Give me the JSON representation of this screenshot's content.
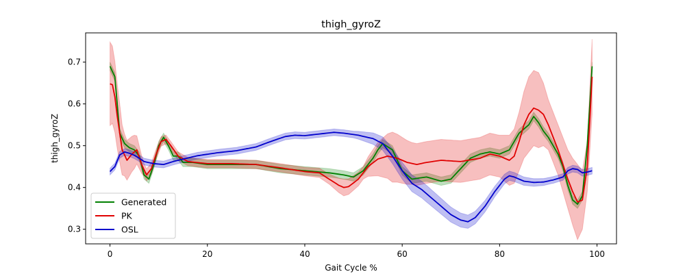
{
  "chart_data": {
    "type": "line",
    "title": "thigh_gyroZ",
    "xlabel": "Gait Cycle %",
    "ylabel": "thigh_gyroZ",
    "xlim": [
      -5,
      104
    ],
    "ylim": [
      0.265,
      0.77
    ],
    "xticks": [
      0,
      20,
      40,
      60,
      80,
      100
    ],
    "yticks": [
      0.3,
      0.4,
      0.5,
      0.6,
      0.7
    ],
    "grid": false,
    "legend_position": "lower-left",
    "series": [
      {
        "name": "Generated",
        "color": "#008000",
        "band": 0.01,
        "knots": [
          [
            0,
            0.69
          ],
          [
            1,
            0.665
          ],
          [
            2,
            0.53
          ],
          [
            3,
            0.505
          ],
          [
            4,
            0.495
          ],
          [
            5,
            0.49
          ],
          [
            6,
            0.475
          ],
          [
            7,
            0.43
          ],
          [
            8,
            0.42
          ],
          [
            9,
            0.455
          ],
          [
            10,
            0.5
          ],
          [
            11,
            0.52
          ],
          [
            12,
            0.5
          ],
          [
            13,
            0.475
          ],
          [
            14,
            0.475
          ],
          [
            15,
            0.46
          ],
          [
            17,
            0.46
          ],
          [
            20,
            0.455
          ],
          [
            25,
            0.455
          ],
          [
            30,
            0.455
          ],
          [
            35,
            0.445
          ],
          [
            40,
            0.44
          ],
          [
            45,
            0.435
          ],
          [
            48,
            0.43
          ],
          [
            50,
            0.425
          ],
          [
            52,
            0.44
          ],
          [
            54,
            0.47
          ],
          [
            55,
            0.49
          ],
          [
            56,
            0.505
          ],
          [
            58,
            0.49
          ],
          [
            60,
            0.44
          ],
          [
            62,
            0.42
          ],
          [
            65,
            0.425
          ],
          [
            68,
            0.415
          ],
          [
            70,
            0.42
          ],
          [
            72,
            0.445
          ],
          [
            74,
            0.47
          ],
          [
            76,
            0.48
          ],
          [
            78,
            0.485
          ],
          [
            80,
            0.48
          ],
          [
            82,
            0.49
          ],
          [
            84,
            0.53
          ],
          [
            86,
            0.55
          ],
          [
            87,
            0.57
          ],
          [
            88,
            0.555
          ],
          [
            89,
            0.535
          ],
          [
            90,
            0.52
          ],
          [
            91,
            0.5
          ],
          [
            92,
            0.48
          ],
          [
            93,
            0.45
          ],
          [
            94,
            0.405
          ],
          [
            95,
            0.37
          ],
          [
            96,
            0.36
          ],
          [
            97,
            0.38
          ],
          [
            98,
            0.5
          ],
          [
            99,
            0.69
          ]
        ]
      },
      {
        "name": "PK",
        "color": "#e00000",
        "band_knots": [
          [
            0,
            0.1
          ],
          [
            2,
            0.07
          ],
          [
            3,
            0.05
          ],
          [
            5,
            0.04
          ],
          [
            7,
            0.015
          ],
          [
            12,
            0.01
          ],
          [
            40,
            0.01
          ],
          [
            45,
            0.012
          ],
          [
            48,
            0.02
          ],
          [
            52,
            0.015
          ],
          [
            55,
            0.04
          ],
          [
            58,
            0.06
          ],
          [
            62,
            0.05
          ],
          [
            70,
            0.05
          ],
          [
            76,
            0.05
          ],
          [
            80,
            0.05
          ],
          [
            84,
            0.07
          ],
          [
            86,
            0.09
          ],
          [
            88,
            0.09
          ],
          [
            90,
            0.06
          ],
          [
            92,
            0.06
          ],
          [
            94,
            0.07
          ],
          [
            96,
            0.09
          ],
          [
            97,
            0.07
          ],
          [
            98,
            0.06
          ],
          [
            99,
            0.09
          ]
        ],
        "knots": [
          [
            0,
            0.648
          ],
          [
            0.7,
            0.645
          ],
          [
            1.5,
            0.57
          ],
          [
            2.5,
            0.49
          ],
          [
            3.5,
            0.465
          ],
          [
            4.5,
            0.48
          ],
          [
            5.5,
            0.49
          ],
          [
            6.5,
            0.455
          ],
          [
            7.5,
            0.43
          ],
          [
            8.5,
            0.445
          ],
          [
            9.5,
            0.48
          ],
          [
            10.5,
            0.51
          ],
          [
            11.5,
            0.515
          ],
          [
            12.5,
            0.5
          ],
          [
            14,
            0.475
          ],
          [
            16,
            0.462
          ],
          [
            20,
            0.457
          ],
          [
            25,
            0.457
          ],
          [
            30,
            0.455
          ],
          [
            35,
            0.447
          ],
          [
            40,
            0.438
          ],
          [
            43,
            0.435
          ],
          [
            45,
            0.42
          ],
          [
            47,
            0.405
          ],
          [
            48,
            0.4
          ],
          [
            49,
            0.402
          ],
          [
            51,
            0.42
          ],
          [
            53,
            0.45
          ],
          [
            55,
            0.468
          ],
          [
            57,
            0.475
          ],
          [
            59,
            0.47
          ],
          [
            61,
            0.46
          ],
          [
            63,
            0.455
          ],
          [
            65,
            0.46
          ],
          [
            68,
            0.465
          ],
          [
            72,
            0.462
          ],
          [
            76,
            0.47
          ],
          [
            78,
            0.48
          ],
          [
            80,
            0.475
          ],
          [
            82,
            0.465
          ],
          [
            83,
            0.475
          ],
          [
            84,
            0.51
          ],
          [
            85,
            0.55
          ],
          [
            86,
            0.575
          ],
          [
            87,
            0.59
          ],
          [
            88,
            0.585
          ],
          [
            89,
            0.575
          ],
          [
            90,
            0.55
          ],
          [
            91,
            0.52
          ],
          [
            92,
            0.49
          ],
          [
            93,
            0.455
          ],
          [
            94,
            0.42
          ],
          [
            95,
            0.39
          ],
          [
            96,
            0.365
          ],
          [
            97,
            0.37
          ],
          [
            98,
            0.45
          ],
          [
            99,
            0.665
          ]
        ]
      },
      {
        "name": "OSL",
        "color": "#0000cc",
        "band": 0.008,
        "band_knots": [
          [
            0,
            0.008
          ],
          [
            50,
            0.008
          ],
          [
            55,
            0.015
          ],
          [
            60,
            0.02
          ],
          [
            65,
            0.02
          ],
          [
            70,
            0.018
          ],
          [
            75,
            0.015
          ],
          [
            80,
            0.012
          ],
          [
            90,
            0.008
          ],
          [
            99,
            0.008
          ]
        ],
        "knots": [
          [
            0,
            0.438
          ],
          [
            1,
            0.45
          ],
          [
            2,
            0.478
          ],
          [
            3,
            0.485
          ],
          [
            4,
            0.482
          ],
          [
            5,
            0.477
          ],
          [
            6,
            0.47
          ],
          [
            7,
            0.462
          ],
          [
            9,
            0.457
          ],
          [
            11,
            0.455
          ],
          [
            13,
            0.462
          ],
          [
            15,
            0.468
          ],
          [
            18,
            0.476
          ],
          [
            22,
            0.483
          ],
          [
            26,
            0.488
          ],
          [
            30,
            0.497
          ],
          [
            33,
            0.51
          ],
          [
            36,
            0.522
          ],
          [
            38,
            0.525
          ],
          [
            40,
            0.524
          ],
          [
            43,
            0.528
          ],
          [
            46,
            0.532
          ],
          [
            48,
            0.53
          ],
          [
            51,
            0.525
          ],
          [
            54,
            0.517
          ],
          [
            56,
            0.505
          ],
          [
            58,
            0.475
          ],
          [
            60,
            0.44
          ],
          [
            62,
            0.41
          ],
          [
            64,
            0.395
          ],
          [
            66,
            0.375
          ],
          [
            68,
            0.355
          ],
          [
            70,
            0.335
          ],
          [
            72,
            0.322
          ],
          [
            73.5,
            0.318
          ],
          [
            75,
            0.328
          ],
          [
            77,
            0.355
          ],
          [
            79,
            0.39
          ],
          [
            81,
            0.42
          ],
          [
            82,
            0.428
          ],
          [
            83,
            0.425
          ],
          [
            85,
            0.415
          ],
          [
            87,
            0.412
          ],
          [
            89,
            0.413
          ],
          [
            91,
            0.418
          ],
          [
            93,
            0.425
          ],
          [
            94,
            0.44
          ],
          [
            95,
            0.445
          ],
          [
            96,
            0.443
          ],
          [
            97,
            0.435
          ],
          [
            98,
            0.437
          ],
          [
            99,
            0.44
          ]
        ]
      }
    ]
  }
}
